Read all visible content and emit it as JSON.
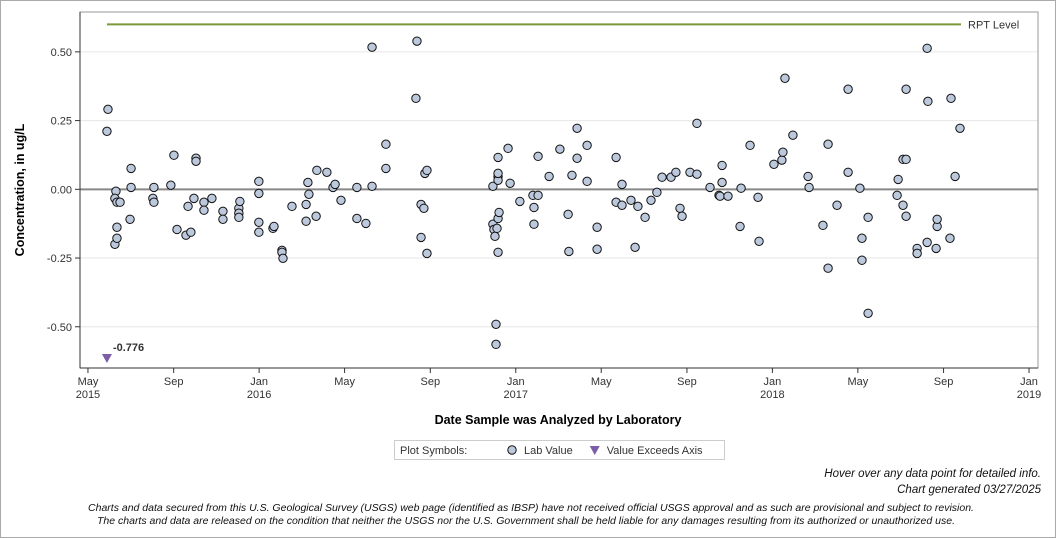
{
  "chart_data": {
    "type": "scatter",
    "x_label": "Date Sample was Analyzed by Laboratory",
    "y_label": "Concentration, in ug/L",
    "xlim": [
      2015.302,
      2019.035
    ],
    "ylim": [
      -0.65,
      0.645
    ],
    "xticks": [
      {
        "value": 2015.333,
        "label": "May 2015"
      },
      {
        "value": 2015.667,
        "label": "Sep"
      },
      {
        "value": 2016,
        "label": "Jan 2016"
      },
      {
        "value": 2016.333,
        "label": "May"
      },
      {
        "value": 2016.667,
        "label": "Sep"
      },
      {
        "value": 2017,
        "label": "Jan 2017"
      },
      {
        "value": 2017.333,
        "label": "May"
      },
      {
        "value": 2017.667,
        "label": "Sep"
      },
      {
        "value": 2018,
        "label": "Jan 2018"
      },
      {
        "value": 2018.333,
        "label": "May"
      },
      {
        "value": 2018.667,
        "label": "Sep"
      },
      {
        "value": 2019,
        "label": "Jan 2019"
      }
    ],
    "yticks": [
      {
        "value": 0.5,
        "label": "0.50"
      },
      {
        "value": 0.25,
        "label": "0.25"
      },
      {
        "value": 0,
        "label": "0.00"
      },
      {
        "value": -0.25,
        "label": "-0.25"
      },
      {
        "value": -0.5,
        "label": "-0.50"
      }
    ],
    "grid": true,
    "reference_line": {
      "label": "RPT Level",
      "value": 0.6,
      "x": [
        2015.407,
        2018.735
      ],
      "color": "#7a9a3a"
    },
    "legend_title": "Plot Symbols:",
    "series": [
      {
        "name": "Lab Value",
        "color": "#bcc8dc",
        "marker": "circle",
        "x": [
          2015.411,
          2015.407,
          2015.442,
          2015.438,
          2015.446,
          2015.438,
          2015.446,
          2015.446,
          2015.458,
          2015.501,
          2015.497,
          2015.501,
          2015.586,
          2015.59,
          2015.59,
          2015.656,
          2015.668,
          2015.68,
          2015.723,
          2015.715,
          2015.734,
          2015.746,
          2015.754,
          2015.754,
          2015.785,
          2015.785,
          2015.816,
          2015.859,
          2015.859,
          2015.921,
          2015.921,
          2015.925,
          2015.921,
          2015.999,
          2015.999,
          2015.999,
          2015.999,
          2016.054,
          2016.058,
          2016.089,
          2016.089,
          2016.093,
          2016.128,
          2016.183,
          2016.19,
          2016.183,
          2016.194,
          2016.222,
          2016.225,
          2016.264,
          2016.288,
          2016.296,
          2016.319,
          2016.381,
          2016.381,
          2016.416,
          2016.44,
          2016.44,
          2016.494,
          2016.494,
          2016.611,
          2016.615,
          2016.631,
          2016.631,
          2016.642,
          2016.646,
          2016.654,
          2016.654,
          2016.911,
          2016.911,
          2016.915,
          2016.919,
          2016.927,
          2016.931,
          2016.931,
          2016.931,
          2016.931,
          2016.931,
          2016.931,
          2016.935,
          2016.923,
          2016.923,
          2016.97,
          2016.978,
          2017.016,
          2017.067,
          2017.071,
          2017.071,
          2017.087,
          2017.087,
          2017.13,
          2017.172,
          2017.204,
          2017.207,
          2017.219,
          2017.239,
          2017.239,
          2017.278,
          2017.278,
          2017.317,
          2017.317,
          2017.391,
          2017.391,
          2017.414,
          2017.414,
          2017.449,
          2017.465,
          2017.476,
          2017.504,
          2017.527,
          2017.55,
          2017.57,
          2017.605,
          2017.624,
          2017.64,
          2017.648,
          2017.679,
          2017.706,
          2017.706,
          2017.757,
          2017.792,
          2017.796,
          2017.804,
          2017.804,
          2017.827,
          2017.874,
          2017.878,
          2017.913,
          2017.944,
          2017.948,
          2018.006,
          2018.037,
          2018.041,
          2018.049,
          2018.08,
          2018.139,
          2018.143,
          2018.197,
          2018.217,
          2018.217,
          2018.252,
          2018.295,
          2018.295,
          2018.341,
          2018.349,
          2018.349,
          2018.373,
          2018.373,
          2018.486,
          2018.49,
          2018.509,
          2018.509,
          2018.521,
          2018.521,
          2018.521,
          2018.564,
          2018.564,
          2018.603,
          2018.603,
          2018.606,
          2018.638,
          2018.642,
          2018.642,
          2018.692,
          2018.696,
          2018.712,
          2018.731
        ],
        "values": [
          0.291,
          0.211,
          -0.007,
          -0.033,
          -0.047,
          -0.2,
          -0.178,
          -0.138,
          -0.047,
          0.076,
          -0.109,
          0.007,
          -0.033,
          -0.047,
          0.007,
          0.015,
          0.124,
          -0.146,
          -0.062,
          -0.167,
          -0.156,
          -0.033,
          0.113,
          0.102,
          -0.047,
          -0.076,
          -0.033,
          -0.08,
          -0.109,
          -0.069,
          -0.087,
          -0.044,
          -0.102,
          0.029,
          -0.015,
          -0.12,
          -0.156,
          -0.142,
          -0.135,
          -0.222,
          -0.229,
          -0.251,
          -0.062,
          -0.116,
          0.025,
          -0.055,
          -0.018,
          -0.098,
          0.069,
          0.062,
          0.007,
          0.018,
          -0.04,
          0.007,
          -0.106,
          -0.124,
          0.011,
          0.517,
          0.164,
          0.076,
          0.331,
          0.539,
          -0.055,
          -0.175,
          -0.069,
          0.058,
          0.069,
          -0.233,
          0.011,
          -0.127,
          -0.146,
          -0.171,
          -0.142,
          0.047,
          0.033,
          0.116,
          0.058,
          -0.106,
          -0.229,
          -0.084,
          -0.491,
          -0.564,
          0.149,
          0.022,
          -0.044,
          -0.022,
          -0.066,
          -0.127,
          -0.022,
          0.12,
          0.047,
          0.146,
          -0.091,
          -0.226,
          0.051,
          0.222,
          0.113,
          0.16,
          0.029,
          -0.138,
          -0.218,
          0.116,
          -0.047,
          0.018,
          -0.058,
          -0.04,
          -0.211,
          -0.062,
          -0.102,
          -0.04,
          -0.011,
          0.044,
          0.044,
          0.062,
          -0.069,
          -0.098,
          0.062,
          0.055,
          0.24,
          0.007,
          -0.022,
          -0.025,
          0.087,
          0.025,
          -0.025,
          -0.135,
          0.004,
          0.16,
          -0.029,
          -0.189,
          0.091,
          0.106,
          0.135,
          0.404,
          0.197,
          0.047,
          0.007,
          -0.131,
          -0.287,
          0.164,
          -0.058,
          0.364,
          0.062,
          0.004,
          -0.258,
          -0.178,
          -0.451,
          -0.102,
          -0.022,
          0.036,
          -0.058,
          0.109,
          -0.098,
          0.109,
          0.364,
          -0.215,
          -0.233,
          0.513,
          -0.193,
          0.32,
          -0.215,
          -0.135,
          -0.109,
          -0.178,
          0.331,
          0.047,
          0.222
        ]
      },
      {
        "name": "Value Exceeds Axis",
        "color": "#7b5ea7",
        "marker": "triangle",
        "x": [
          2015.407
        ],
        "values": [
          -0.776
        ],
        "value_labels": [
          "-0.776"
        ]
      }
    ]
  },
  "footer": {
    "hover_note": "Hover over any data point for detailed info.",
    "generated": "Chart generated 03/27/2025",
    "disclaimer": [
      "Charts and data secured from this U.S. Geological Survey (USGS) web page (identified as IBSP) have not received official USGS approval and as such are provisional and subject to revision.",
      "The charts and data are released on the condition that neither the USGS nor the U.S. Government shall be held liable for any damages resulting from its authorized or unauthorized use."
    ]
  }
}
